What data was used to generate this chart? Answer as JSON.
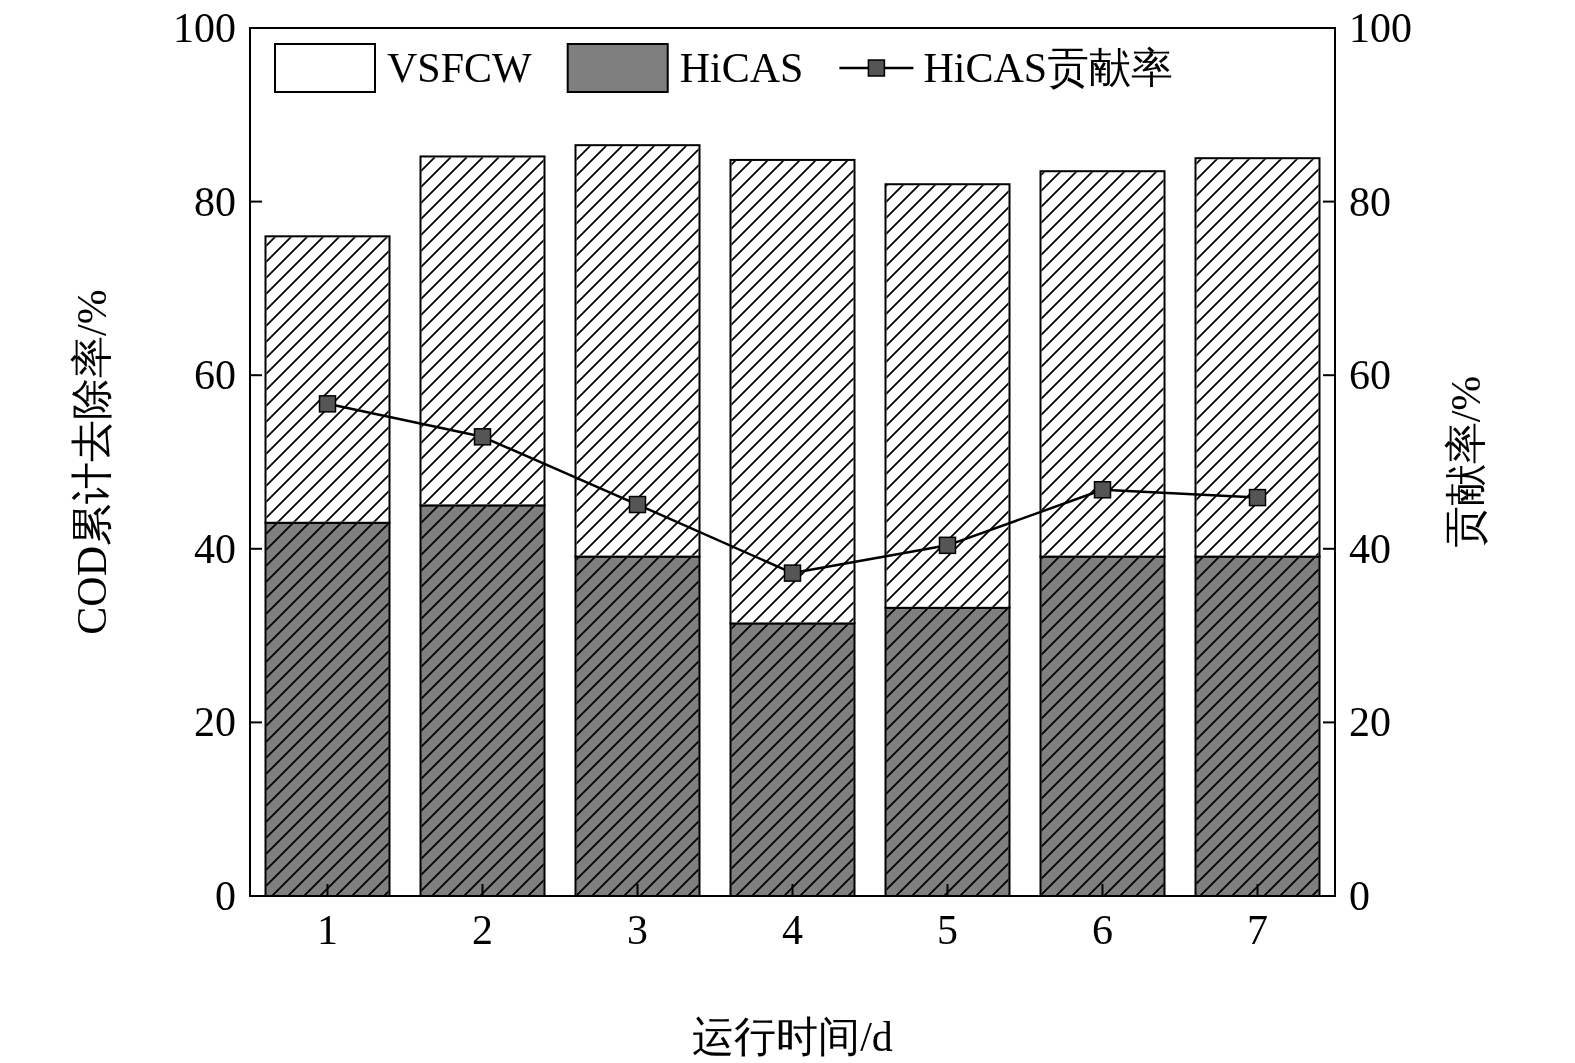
{
  "chart_data": {
    "type": "bar",
    "stacked": true,
    "xlabel": "运行时间/d",
    "ylabel": "COD累计去除率/%",
    "y2label": "贡献率/%",
    "categories": [
      "1",
      "2",
      "3",
      "4",
      "5",
      "6",
      "7"
    ],
    "series": [
      {
        "name": "HiCAS",
        "color": "#7f7f7f",
        "values": [
          43.0,
          45.0,
          39.1,
          31.4,
          33.2,
          39.1,
          39.1
        ]
      },
      {
        "name": "VSFCW",
        "color": "#ffffff",
        "values": [
          33.0,
          40.2,
          47.4,
          53.4,
          48.8,
          44.4,
          45.9
        ]
      },
      {
        "name": "HiCAS贡献率",
        "type": "line",
        "axis": "y2",
        "color": "#000000",
        "marker": "square",
        "line_style": "solid",
        "values": [
          56.7,
          52.9,
          45.1,
          37.2,
          40.4,
          46.8,
          45.9
        ]
      }
    ],
    "ylim": [
      0,
      100
    ],
    "yticks": [
      0,
      20,
      40,
      60,
      80,
      100
    ],
    "y2lim": [
      0,
      100
    ],
    "y2ticks": [
      0,
      20,
      40,
      60,
      80,
      100
    ],
    "grid": false,
    "legend": "top"
  }
}
